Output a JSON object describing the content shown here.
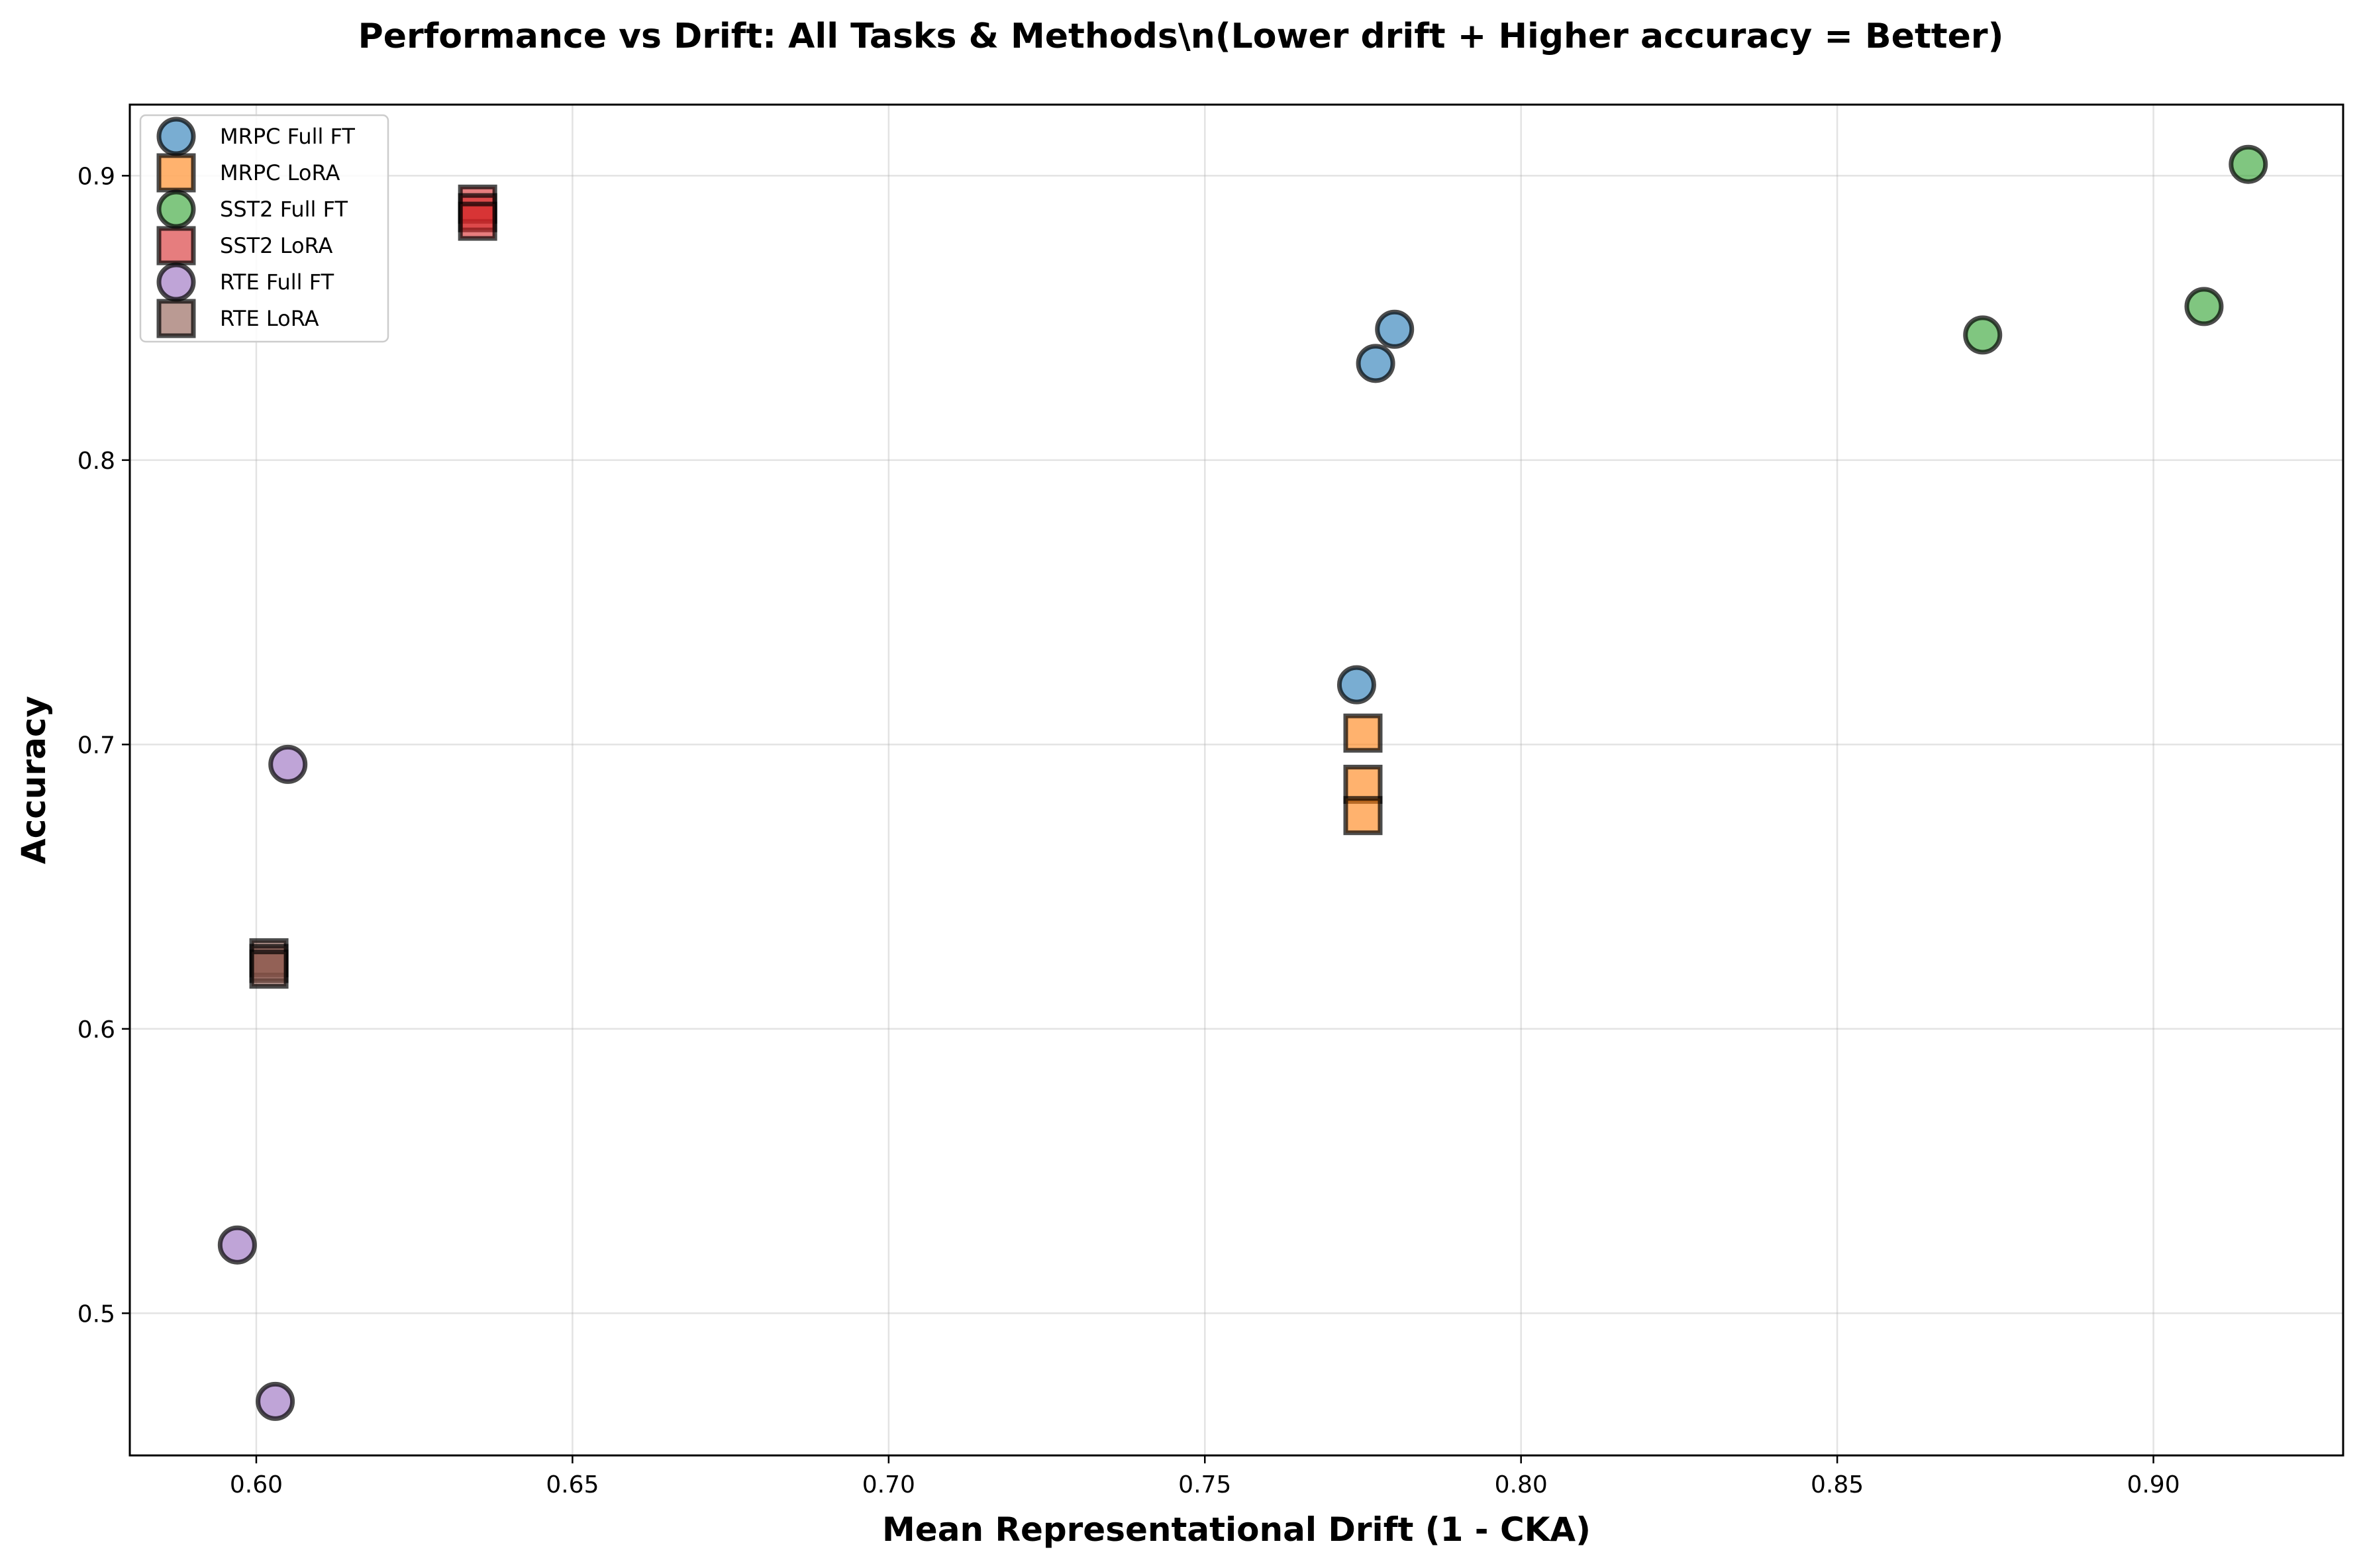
{
  "chart_data": {
    "type": "scatter",
    "title": "Performance vs Drift: All Tasks & Methods\\n(Lower drift + Higher accuracy = Better)",
    "xlabel": "Mean Representational Drift (1 - CKA)",
    "ylabel": "Accuracy",
    "xlim": [
      0.58,
      0.93
    ],
    "ylim": [
      0.45,
      0.925
    ],
    "xticks": [
      0.6,
      0.65,
      0.7,
      0.75,
      0.8,
      0.85,
      0.9
    ],
    "xtick_labels": [
      "0.60",
      "0.65",
      "0.70",
      "0.75",
      "0.80",
      "0.85",
      "0.90"
    ],
    "yticks": [
      0.5,
      0.6,
      0.7,
      0.8,
      0.9
    ],
    "ytick_labels": [
      "0.5",
      "0.6",
      "0.7",
      "0.8",
      "0.9"
    ],
    "grid": true,
    "legend_position": "top-left",
    "series": [
      {
        "name": "MRPC Full FT",
        "marker": "circle",
        "color": "#1f77b4",
        "points": [
          [
            0.78,
            0.846
          ],
          [
            0.777,
            0.834
          ],
          [
            0.774,
            0.721
          ]
        ]
      },
      {
        "name": "MRPC LoRA",
        "marker": "square",
        "color": "#ff7f0e",
        "points": [
          [
            0.775,
            0.704
          ],
          [
            0.775,
            0.686
          ],
          [
            0.775,
            0.675
          ]
        ]
      },
      {
        "name": "SST2 Full FT",
        "marker": "circle",
        "color": "#2ca02c",
        "points": [
          [
            0.915,
            0.904
          ],
          [
            0.908,
            0.854
          ],
          [
            0.873,
            0.844
          ]
        ]
      },
      {
        "name": "SST2 LoRA",
        "marker": "square",
        "color": "#d62728",
        "points": [
          [
            0.635,
            0.89
          ],
          [
            0.635,
            0.887
          ],
          [
            0.635,
            0.884
          ]
        ]
      },
      {
        "name": "RTE Full FT",
        "marker": "circle",
        "color": "#9467bd",
        "points": [
          [
            0.605,
            0.693
          ],
          [
            0.597,
            0.524
          ],
          [
            0.603,
            0.469
          ]
        ]
      },
      {
        "name": "RTE LoRA",
        "marker": "square",
        "color": "#8c564b",
        "points": [
          [
            0.602,
            0.625
          ],
          [
            0.602,
            0.623
          ],
          [
            0.602,
            0.621
          ]
        ]
      }
    ]
  }
}
